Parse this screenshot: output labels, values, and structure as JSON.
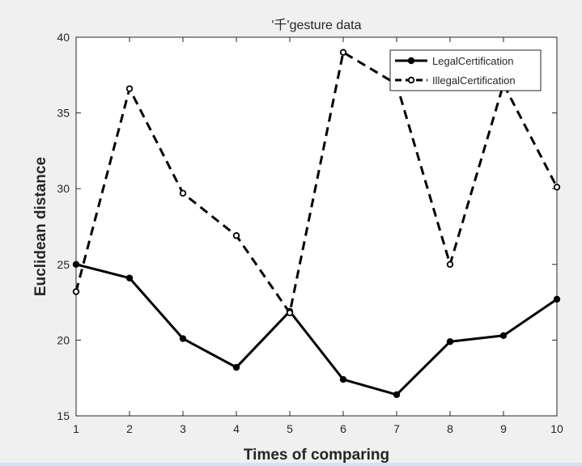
{
  "chart_data": {
    "type": "line",
    "title": "'千'gesture data",
    "xlabel": "Times of comparing",
    "ylabel": "Euclidean distance",
    "x": [
      1,
      2,
      3,
      4,
      5,
      6,
      7,
      8,
      9,
      10
    ],
    "xticks": [
      1,
      2,
      3,
      4,
      5,
      6,
      7,
      8,
      9,
      10
    ],
    "yticks": [
      15,
      20,
      25,
      30,
      35,
      40
    ],
    "xlim": [
      1,
      10
    ],
    "ylim": [
      15,
      40
    ],
    "grid": false,
    "legend_position": "top-right",
    "series": [
      {
        "name": "LegalCertification",
        "values": [
          25.0,
          24.1,
          20.1,
          18.2,
          21.9,
          17.4,
          16.4,
          19.9,
          20.3,
          22.7
        ],
        "line_style": "solid",
        "marker": "filled-circle",
        "color": "#000000"
      },
      {
        "name": "IllegalCertification",
        "values": [
          23.2,
          36.6,
          29.7,
          26.9,
          21.8,
          39.0,
          36.9,
          25.0,
          36.9,
          30.1
        ],
        "line_style": "dashed",
        "marker": "open-circle",
        "color": "#000000"
      }
    ]
  }
}
